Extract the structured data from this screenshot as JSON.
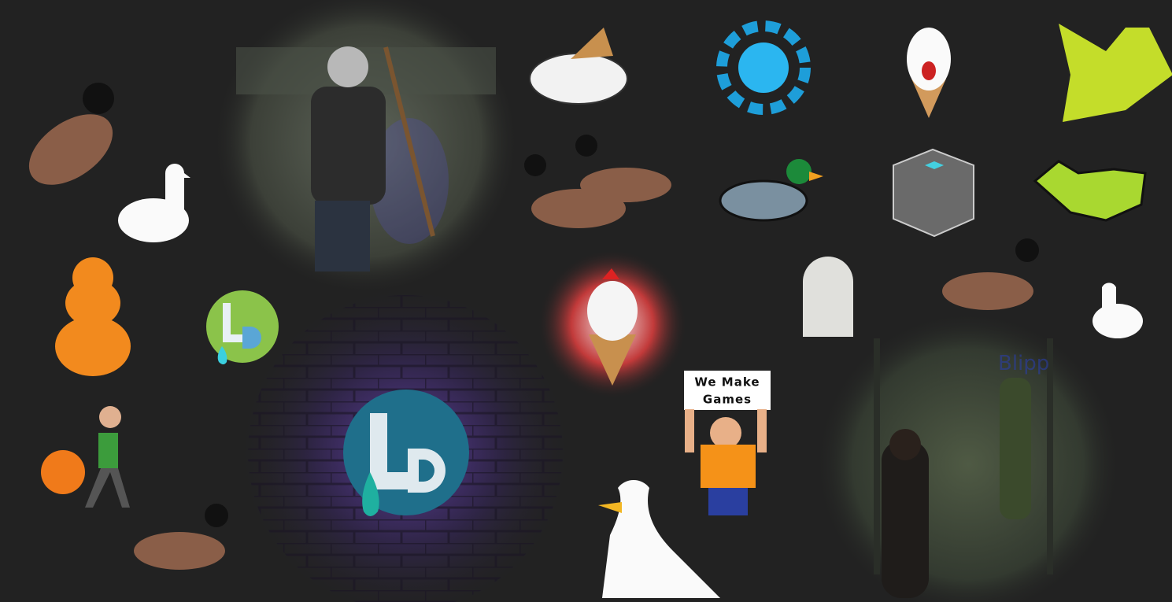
{
  "sign": {
    "lines": [
      "We Make",
      "Games"
    ]
  },
  "game_label": "Blipp"
}
